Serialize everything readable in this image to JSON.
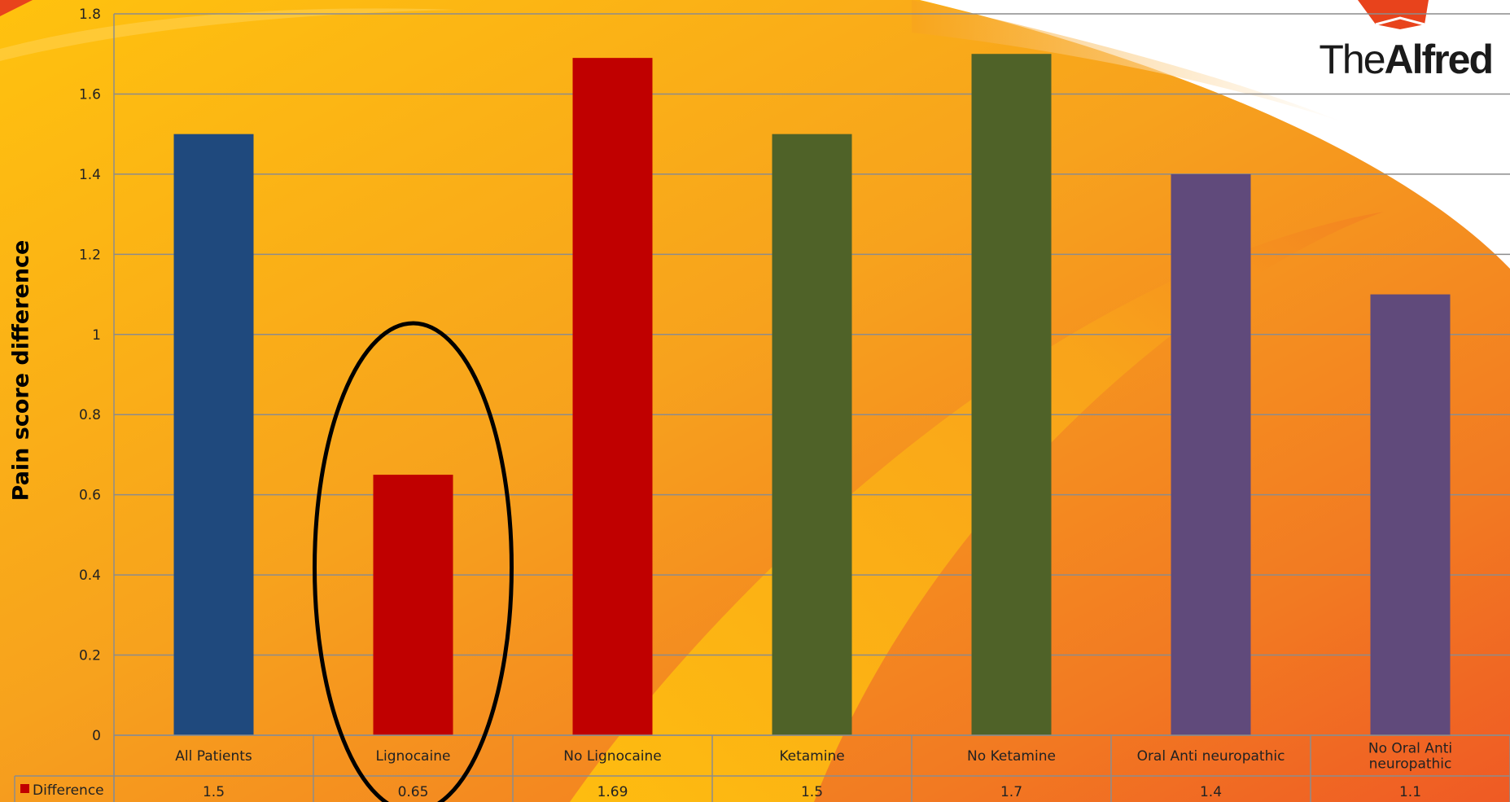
{
  "logo": {
    "text_prefix": "The",
    "text_bold": "Alfred"
  },
  "chart_data": {
    "type": "bar",
    "title": "",
    "xlabel": "",
    "ylabel": "Pain score difference",
    "ylim": [
      0,
      1.8
    ],
    "yticks": [
      "0",
      "0.2",
      "0.4",
      "0.6",
      "0.8",
      "1",
      "1.2",
      "1.4",
      "1.6",
      "1.8"
    ],
    "grid": true,
    "legend_position": "data-table",
    "categories": [
      "All Patients",
      "Lignocaine",
      "No Lignocaine",
      "Ketamine",
      "No Ketamine",
      "Oral Anti neuropathic",
      "No Oral Anti neuropathic"
    ],
    "series": [
      {
        "name": "Difference",
        "values": [
          1.5,
          0.65,
          1.69,
          1.5,
          1.7,
          1.4,
          1.1
        ],
        "legend_color": "#c00000"
      }
    ],
    "value_labels": [
      "1.5",
      "0.65",
      "1.69",
      "1.5",
      "1.7",
      "1.4",
      "1.1"
    ],
    "bar_colors": [
      "#1f497d",
      "#c00000",
      "#c00000",
      "#4f6228",
      "#4f6228",
      "#604a7b",
      "#604a7b"
    ],
    "highlighted_category": "Lignocaine"
  },
  "colors": {
    "bg_orange": "#f5a623",
    "bg_yellow": "#ffc20e",
    "bg_red": "#f06424",
    "grid": "#8c8c8c"
  }
}
